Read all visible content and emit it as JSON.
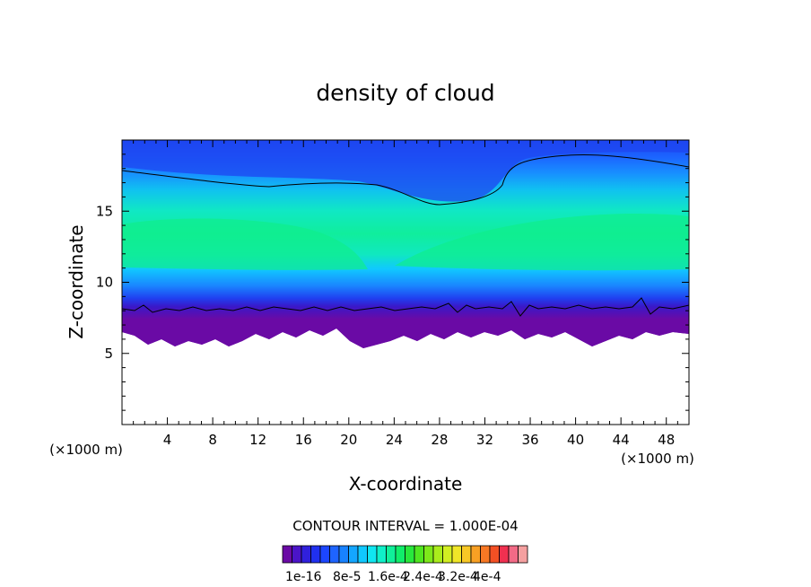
{
  "chart_data": {
    "type": "heatmap",
    "title": "density of cloud",
    "xlabel": "X-coordinate",
    "ylabel": "Z-coordinate",
    "x_unit": "(×1000 m)",
    "y_unit": "(×1000 m)",
    "xlim": [
      0,
      50
    ],
    "ylim": [
      0,
      20
    ],
    "x_ticks": [
      4,
      8,
      12,
      16,
      20,
      24,
      28,
      32,
      36,
      40,
      44,
      48
    ],
    "y_ticks": [
      5,
      10,
      15
    ],
    "contour_interval_label": "CONTOUR INTERVAL = 1.000E-04",
    "colorbar": {
      "tick_labels": [
        "1e-16",
        "8e-5",
        "1.6e-4",
        "2.4e-4",
        "3.2e-4",
        "4e-4"
      ],
      "colors": [
        "#6a0aa5",
        "#4b14c8",
        "#3020dc",
        "#2030f0",
        "#1c46ff",
        "#1e64ff",
        "#1882ff",
        "#14a6ff",
        "#10c8ff",
        "#10e6f0",
        "#10f0c8",
        "#10f09a",
        "#10ee6a",
        "#28e83c",
        "#50e620",
        "#7ee81a",
        "#aaec1c",
        "#d2ee22",
        "#f0e628",
        "#f8c826",
        "#f8a024",
        "#f87824",
        "#f45024",
        "#f03050",
        "#f26a86",
        "#f5a0a0"
      ]
    },
    "field_description": {
      "cloud_base_z": 6.2,
      "cloud_top_z": 19.8,
      "max_density_band_z": [
        11,
        15
      ]
    }
  }
}
